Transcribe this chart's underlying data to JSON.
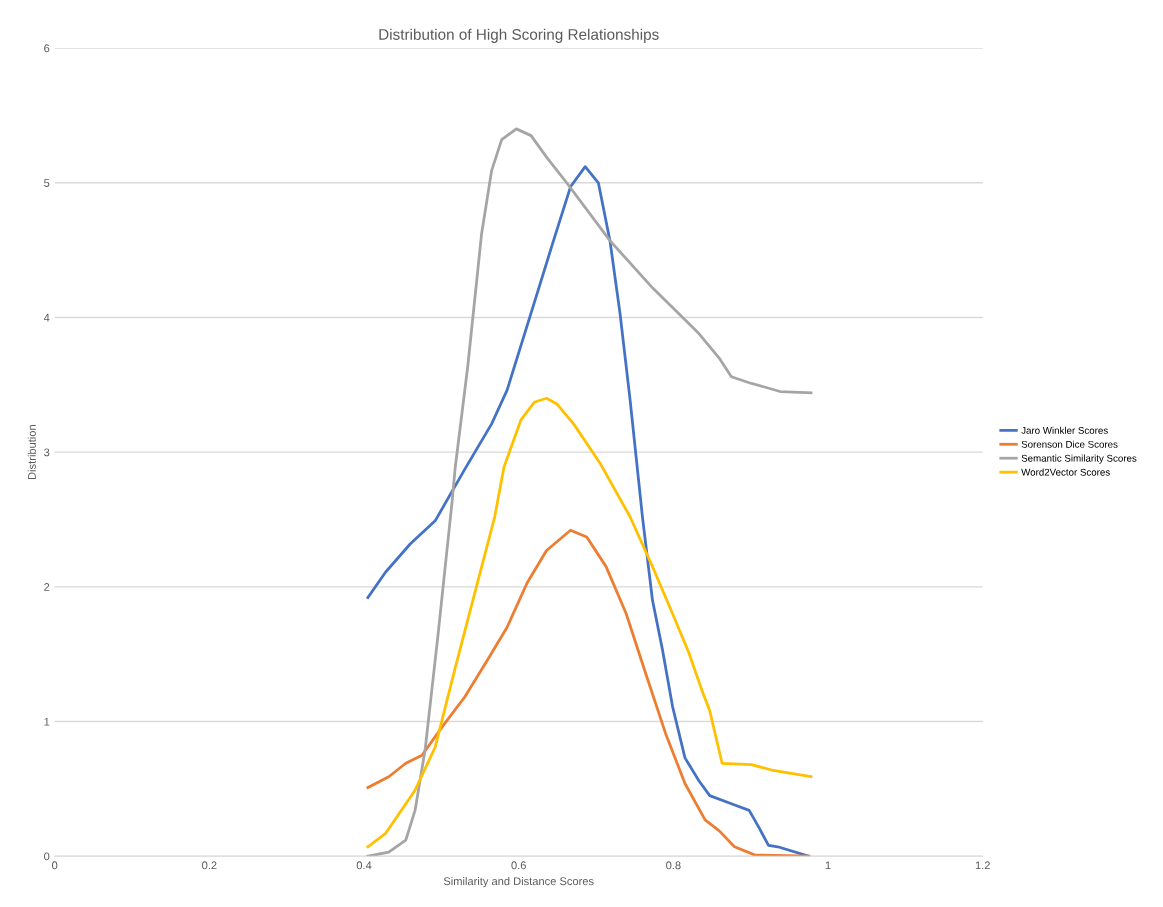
{
  "chart_data": {
    "type": "line",
    "title": "Distribution of High Scoring Relationships",
    "xlabel": "Similarity and Distance Scores",
    "ylabel": "Distribution",
    "xlim": [
      0,
      1.2
    ],
    "xticks": [
      0,
      0.2,
      0.4,
      0.6,
      0.8,
      1,
      1.2
    ],
    "ylim": [
      0,
      6
    ],
    "yticks": [
      0,
      1,
      2,
      3,
      4,
      5,
      6
    ],
    "grid": "y",
    "legend": "right",
    "marker": "none",
    "line_style": "solid",
    "series": [
      {
        "name": "Jaro Winkler Scores",
        "color": "#4472c4",
        "x": [
          0.405,
          0.428,
          0.46,
          0.492,
          0.53,
          0.565,
          0.585,
          0.624,
          0.645,
          0.667,
          0.686,
          0.703,
          0.718,
          0.731,
          0.744,
          0.76,
          0.773,
          0.786,
          0.799,
          0.815,
          0.833,
          0.847,
          0.875,
          0.898,
          0.91,
          0.923,
          0.935,
          0.975
        ],
        "values": [
          1.92,
          2.11,
          2.32,
          2.49,
          2.87,
          3.21,
          3.46,
          4.18,
          4.57,
          4.97,
          5.12,
          5.0,
          4.57,
          4.03,
          3.39,
          2.52,
          1.9,
          1.53,
          1.11,
          0.73,
          0.56,
          0.45,
          0.39,
          0.34,
          0.22,
          0.08,
          0.07,
          0
        ]
      },
      {
        "name": "Sorenson Dice Scores",
        "color": "#ed7d31",
        "x": [
          0.405,
          0.432,
          0.454,
          0.475,
          0.501,
          0.53,
          0.56,
          0.585,
          0.611,
          0.636,
          0.667,
          0.688,
          0.713,
          0.739,
          0.764,
          0.79,
          0.815,
          0.841,
          0.859,
          0.879,
          0.905,
          0.975
        ],
        "values": [
          0.51,
          0.59,
          0.69,
          0.75,
          0.96,
          1.18,
          1.46,
          1.7,
          2.03,
          2.27,
          2.42,
          2.37,
          2.15,
          1.8,
          1.36,
          0.91,
          0.54,
          0.27,
          0.19,
          0.07,
          0.01,
          0
        ]
      },
      {
        "name": "Semantic Similarity Scores",
        "color": "#a5a5a5",
        "x": [
          0.405,
          0.432,
          0.454,
          0.466,
          0.479,
          0.496,
          0.514,
          0.518,
          0.534,
          0.552,
          0.565,
          0.578,
          0.597,
          0.616,
          0.636,
          0.662,
          0.718,
          0.773,
          0.833,
          0.859,
          0.875,
          0.901,
          0.92,
          0.938,
          0.978
        ],
        "values": [
          0,
          0.03,
          0.12,
          0.34,
          0.79,
          1.66,
          2.64,
          2.89,
          3.63,
          4.62,
          5.09,
          5.32,
          5.4,
          5.35,
          5.19,
          5.0,
          4.57,
          4.22,
          3.88,
          3.7,
          3.56,
          3.51,
          3.48,
          3.45,
          3.44
        ]
      },
      {
        "name": "Word2Vector Scores",
        "color": "#ffc000",
        "x": [
          0.405,
          0.428,
          0.466,
          0.492,
          0.518,
          0.543,
          0.569,
          0.581,
          0.603,
          0.62,
          0.636,
          0.649,
          0.671,
          0.705,
          0.744,
          0.773,
          0.799,
          0.82,
          0.837,
          0.847,
          0.863,
          0.901,
          0.927,
          0.978
        ],
        "values": [
          0.07,
          0.17,
          0.49,
          0.81,
          1.4,
          1.95,
          2.52,
          2.89,
          3.24,
          3.37,
          3.4,
          3.36,
          3.21,
          2.92,
          2.52,
          2.15,
          1.8,
          1.51,
          1.23,
          1.08,
          0.69,
          0.68,
          0.64,
          0.59
        ]
      }
    ]
  }
}
